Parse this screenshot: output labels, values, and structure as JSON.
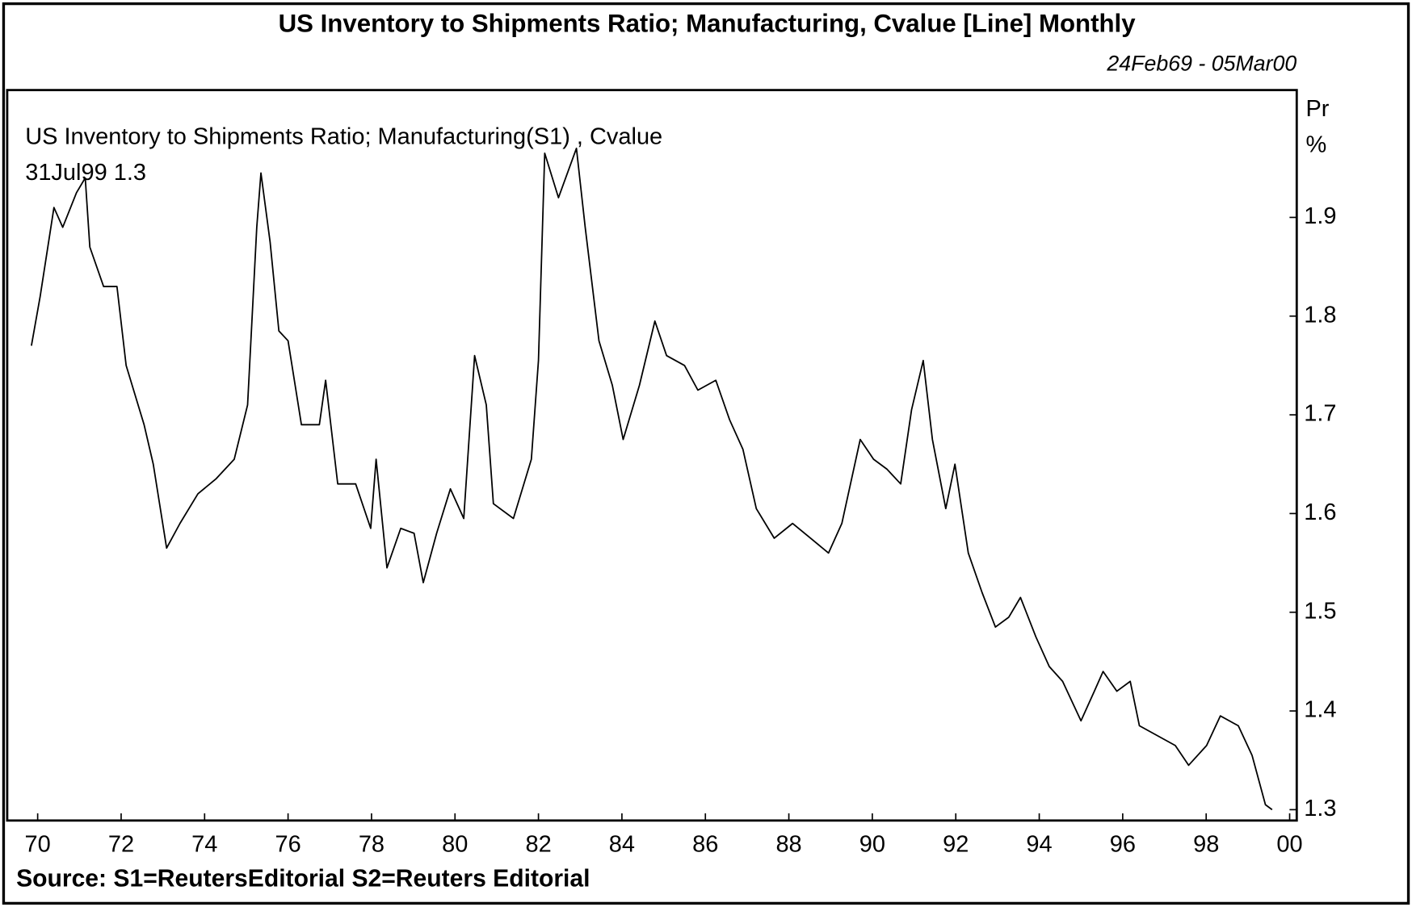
{
  "chart_data": {
    "type": "line",
    "title": "US Inventory to Shipments Ratio; Manufacturing, Cvalue [Line] Monthly",
    "subtitle": "24Feb69 - 05Mar00",
    "annotation": "31Jul99 1.3",
    "y_axis_label": [
      "Pr",
      "%"
    ],
    "source": "Source: S1=ReutersEditorial S2=Reuters Editorial",
    "x": [
      1969.85,
      1970.06,
      1970.39,
      1970.6,
      1970.93,
      1971.14,
      1971.25,
      1971.58,
      1971.9,
      1972.12,
      1972.55,
      1972.77,
      1973.09,
      1973.41,
      1973.84,
      1974.27,
      1974.71,
      1975.03,
      1975.25,
      1975.35,
      1975.57,
      1975.78,
      1976,
      1976.32,
      1976.75,
      1976.9,
      1977.19,
      1977.62,
      1977.98,
      1978.11,
      1978.37,
      1978.7,
      1979.02,
      1979.24,
      1979.56,
      1979.89,
      1980.21,
      1980.47,
      1980.75,
      1980.92,
      1981.4,
      1981.83,
      1982,
      1982.15,
      1982.48,
      1982.91,
      1983.12,
      1983.45,
      1983.77,
      1984.03,
      1984.42,
      1984.79,
      1985.07,
      1985.5,
      1985.82,
      1986.25,
      1986.58,
      1986.9,
      1987.22,
      1987.65,
      1988.09,
      1988.52,
      1988.95,
      1989.27,
      1989.71,
      1990.03,
      1990.35,
      1990.68,
      1990.94,
      1991.22,
      1991.44,
      1991.76,
      1991.98,
      1992.3,
      1992.63,
      1992.95,
      1993.27,
      1993.55,
      1993.92,
      1994.24,
      1994.56,
      1995,
      1995.32,
      1995.53,
      1995.86,
      1996.18,
      1996.4,
      1996.83,
      1997.26,
      1997.58,
      1998.01,
      1998.34,
      1998.77,
      1999.1,
      1999.42,
      1999.58
    ],
    "series": [
      {
        "name": "US Inventory to Shipments Ratio; Manufacturing(S1) , Cvalue",
        "color": "#000000",
        "values": [
          1.77,
          1.82,
          1.91,
          1.89,
          1.925,
          1.94,
          1.87,
          1.83,
          1.83,
          1.75,
          1.69,
          1.65,
          1.565,
          1.59,
          1.62,
          1.635,
          1.655,
          1.71,
          1.89,
          1.945,
          1.875,
          1.785,
          1.775,
          1.69,
          1.69,
          1.735,
          1.63,
          1.63,
          1.585,
          1.655,
          1.545,
          1.585,
          1.58,
          1.53,
          1.58,
          1.625,
          1.595,
          1.76,
          1.71,
          1.61,
          1.595,
          1.655,
          1.755,
          1.965,
          1.92,
          1.97,
          1.89,
          1.775,
          1.73,
          1.675,
          1.73,
          1.795,
          1.76,
          1.75,
          1.725,
          1.735,
          1.695,
          1.665,
          1.605,
          1.575,
          1.59,
          1.575,
          1.56,
          1.59,
          1.675,
          1.655,
          1.645,
          1.63,
          1.705,
          1.755,
          1.675,
          1.605,
          1.65,
          1.56,
          1.52,
          1.485,
          1.495,
          1.515,
          1.475,
          1.445,
          1.43,
          1.39,
          1.42,
          1.44,
          1.42,
          1.43,
          1.385,
          1.375,
          1.365,
          1.345,
          1.365,
          1.395,
          1.385,
          1.355,
          1.305,
          1.3
        ]
      }
    ],
    "xlim": [
      1969.27,
      2000.17
    ],
    "xticks": [
      {
        "value": 1970,
        "label": "70"
      },
      {
        "value": 1972,
        "label": "72"
      },
      {
        "value": 1974,
        "label": "74"
      },
      {
        "value": 1976,
        "label": "76"
      },
      {
        "value": 1978,
        "label": "78"
      },
      {
        "value": 1980,
        "label": "80"
      },
      {
        "value": 1982,
        "label": "82"
      },
      {
        "value": 1984,
        "label": "84"
      },
      {
        "value": 1986,
        "label": "86"
      },
      {
        "value": 1988,
        "label": "88"
      },
      {
        "value": 1990,
        "label": "90"
      },
      {
        "value": 1992,
        "label": "92"
      },
      {
        "value": 1994,
        "label": "94"
      },
      {
        "value": 1996,
        "label": "96"
      },
      {
        "value": 1998,
        "label": "98"
      },
      {
        "value": 2000,
        "label": "00"
      }
    ],
    "ylim": [
      1.289,
      2.029
    ],
    "yticks": [
      1.3,
      1.4,
      1.5,
      1.6,
      1.7,
      1.8,
      1.9
    ],
    "grid": false
  }
}
